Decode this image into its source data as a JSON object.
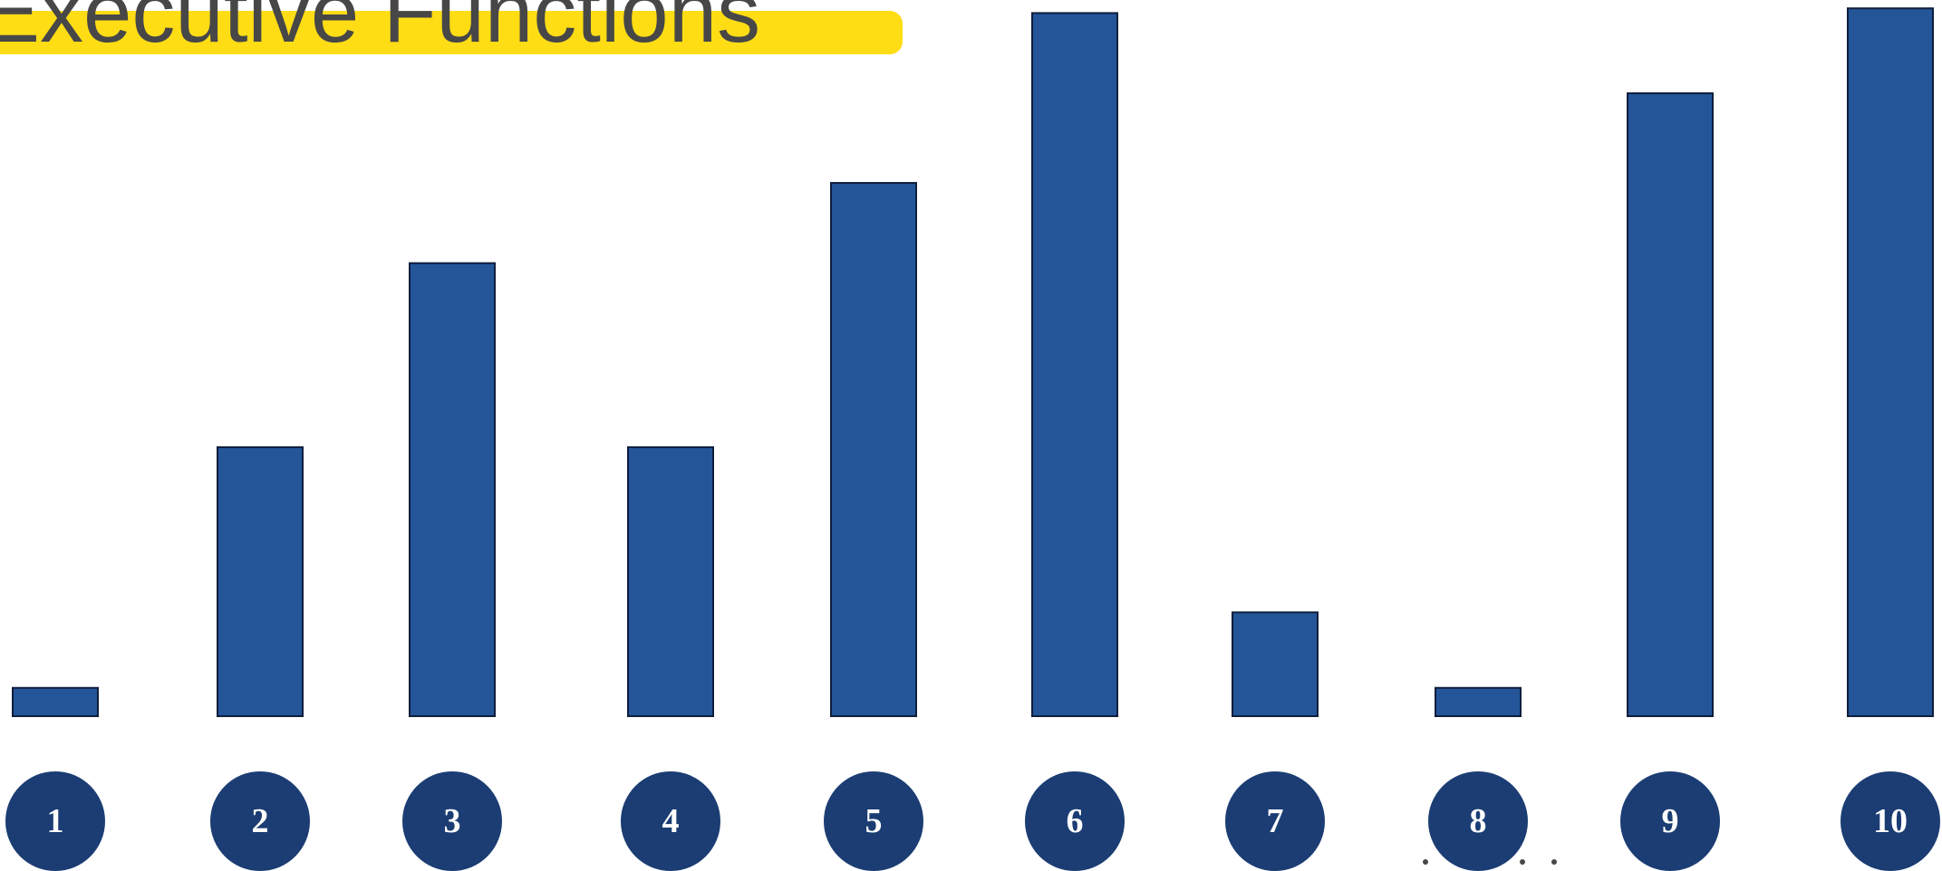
{
  "title": "Executive Functions",
  "colors": {
    "bar_fill": "#245599",
    "bar_stroke": "#0F1E3C",
    "circle_fill": "#1B3D73",
    "label_text": "#FFFFFF",
    "title_text": "#474747",
    "highlight": "#FFDD15"
  },
  "chart_data": {
    "type": "bar",
    "title": "Executive Functions",
    "categories": [
      "1",
      "2",
      "3",
      "4",
      "5",
      "6",
      "7",
      "8",
      "9",
      "10"
    ],
    "values": [
      3,
      28.5,
      48,
      28.5,
      56.5,
      74.5,
      11,
      3,
      66,
      75
    ],
    "ylim": [
      0,
      75.5
    ],
    "grid": false,
    "legend": "none"
  }
}
